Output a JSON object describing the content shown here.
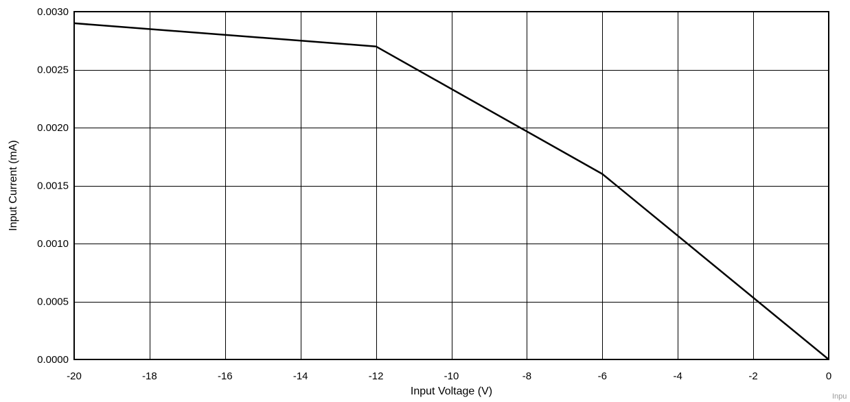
{
  "chart_data": {
    "type": "line",
    "xlabel": "Input Voltage (V)",
    "ylabel": "Input Current (mA)",
    "xlim": [
      -20,
      0
    ],
    "ylim": [
      0,
      0.003
    ],
    "x_ticks": [
      "-20",
      "-18",
      "-16",
      "-14",
      "-12",
      "-10",
      "-8",
      "-6",
      "-4",
      "-2",
      "0"
    ],
    "y_ticks": [
      "0.0000",
      "0.0005",
      "0.0010",
      "0.0015",
      "0.0020",
      "0.0025",
      "0.0030"
    ],
    "grid": true,
    "series": [
      {
        "x": [
          -20,
          -12,
          -6,
          0
        ],
        "y": [
          0.0029,
          0.0027,
          0.0016,
          0.0
        ],
        "color": "#000000"
      }
    ]
  },
  "watermark": "Inpu"
}
